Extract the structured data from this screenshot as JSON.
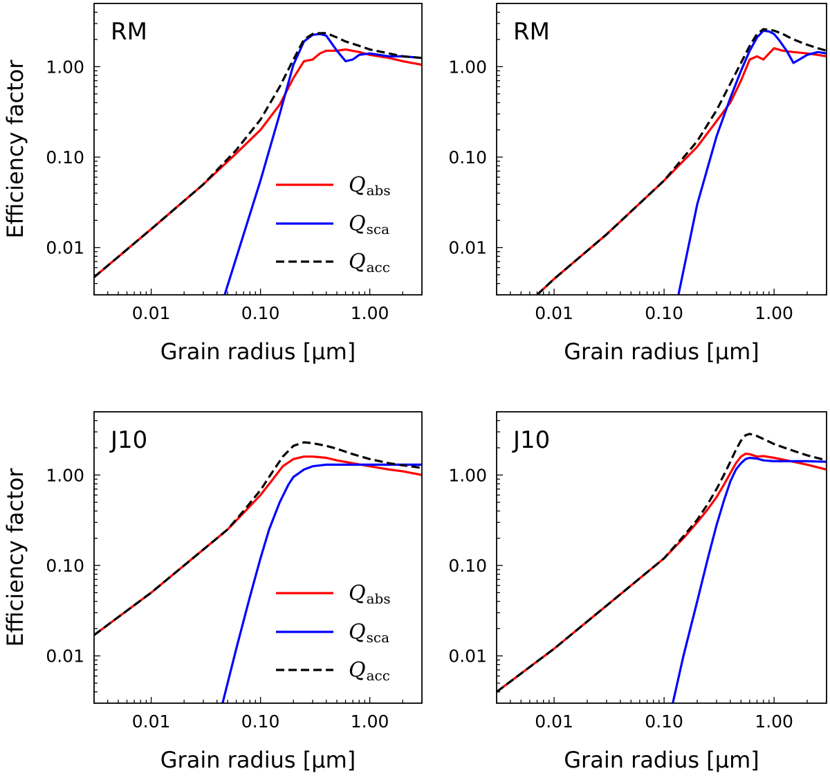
{
  "chart_data": [
    {
      "type": "line",
      "panel_label": "RM",
      "xlabel": "Grain radius [μm]",
      "ylabel": "Efficiency factor",
      "xscale": "log",
      "yscale": "log",
      "xlim": [
        0.003,
        3.0
      ],
      "ylim": [
        0.003,
        5.0
      ],
      "xticks": [
        "0.01",
        "0.10",
        "1.00"
      ],
      "yticks": [
        "0.01",
        "0.10",
        "1.00"
      ],
      "grid": false,
      "legend": {
        "placement": "center-right"
      },
      "series": [
        {
          "name": "Q",
          "sub": "abs",
          "color": "#ff0000",
          "style": "solid",
          "x": [
            0.003,
            0.01,
            0.03,
            0.06,
            0.1,
            0.15,
            0.2,
            0.25,
            0.3,
            0.35,
            0.4,
            0.5,
            0.6,
            0.8,
            1.0,
            1.5,
            2.0,
            3.0
          ],
          "y": [
            0.0047,
            0.016,
            0.05,
            0.11,
            0.2,
            0.38,
            0.75,
            1.15,
            1.2,
            1.4,
            1.5,
            1.5,
            1.55,
            1.45,
            1.35,
            1.25,
            1.15,
            1.05
          ]
        },
        {
          "name": "Q",
          "sub": "sca",
          "color": "#0000ff",
          "style": "solid",
          "x": [
            0.047,
            0.1,
            0.15,
            0.2,
            0.25,
            0.3,
            0.35,
            0.4,
            0.5,
            0.6,
            0.7,
            0.8,
            1.0,
            1.5,
            2.0,
            3.0
          ],
          "y": [
            0.003,
            0.055,
            0.3,
            1.05,
            1.9,
            2.25,
            2.3,
            2.2,
            1.5,
            1.15,
            1.2,
            1.35,
            1.4,
            1.3,
            1.3,
            1.25
          ]
        },
        {
          "name": "Q",
          "sub": "acc",
          "color": "#000000",
          "style": "dashed",
          "x": [
            0.003,
            0.01,
            0.03,
            0.06,
            0.1,
            0.15,
            0.2,
            0.25,
            0.3,
            0.35,
            0.4,
            0.5,
            0.6,
            0.8,
            1.0,
            1.5,
            2.0,
            3.0
          ],
          "y": [
            0.0047,
            0.016,
            0.05,
            0.12,
            0.26,
            0.6,
            1.2,
            2.0,
            2.3,
            2.35,
            2.35,
            2.1,
            1.9,
            1.7,
            1.55,
            1.4,
            1.3,
            1.25
          ]
        }
      ]
    },
    {
      "type": "line",
      "panel_label": "RM",
      "xlabel": "Grain radius [μm]",
      "ylabel": "",
      "xscale": "log",
      "yscale": "log",
      "xlim": [
        0.003,
        3.0
      ],
      "ylim": [
        0.003,
        5.0
      ],
      "xticks": [
        "0.01",
        "0.10",
        "1.00"
      ],
      "yticks": [
        "0.01",
        "0.10",
        "1.00"
      ],
      "grid": false,
      "legend": null,
      "series": [
        {
          "name": "Q",
          "sub": "abs",
          "color": "#ff0000",
          "style": "solid",
          "x": [
            0.007,
            0.01,
            0.03,
            0.1,
            0.2,
            0.3,
            0.4,
            0.5,
            0.6,
            0.7,
            0.8,
            0.9,
            1.0,
            1.2,
            1.5,
            2.0,
            2.5,
            3.0
          ],
          "y": [
            0.003,
            0.0045,
            0.014,
            0.055,
            0.13,
            0.25,
            0.4,
            0.7,
            1.2,
            1.3,
            1.2,
            1.4,
            1.6,
            1.5,
            1.45,
            1.4,
            1.35,
            1.3
          ]
        },
        {
          "name": "Q",
          "sub": "sca",
          "color": "#0000ff",
          "style": "solid",
          "x": [
            0.135,
            0.2,
            0.3,
            0.4,
            0.5,
            0.6,
            0.7,
            0.8,
            0.9,
            1.0,
            1.1,
            1.3,
            1.5,
            1.7,
            2.0,
            2.5,
            3.0
          ],
          "y": [
            0.003,
            0.03,
            0.17,
            0.45,
            0.9,
            1.5,
            2.1,
            2.5,
            2.45,
            2.3,
            2.0,
            1.5,
            1.1,
            1.2,
            1.35,
            1.45,
            1.4
          ]
        },
        {
          "name": "Q",
          "sub": "acc",
          "color": "#000000",
          "style": "dashed",
          "x": [
            0.007,
            0.01,
            0.03,
            0.1,
            0.2,
            0.3,
            0.4,
            0.5,
            0.6,
            0.7,
            0.8,
            1.0,
            1.2,
            1.5,
            2.0,
            2.5,
            3.0
          ],
          "y": [
            0.003,
            0.0045,
            0.014,
            0.055,
            0.15,
            0.33,
            0.65,
            1.1,
            1.7,
            2.3,
            2.6,
            2.5,
            2.3,
            2.0,
            1.75,
            1.6,
            1.5
          ]
        }
      ]
    },
    {
      "type": "line",
      "panel_label": "J10",
      "xlabel": "Grain radius [μm]",
      "ylabel": "Efficiency factor",
      "xscale": "log",
      "yscale": "log",
      "xlim": [
        0.003,
        3.0
      ],
      "ylim": [
        0.003,
        5.0
      ],
      "xticks": [
        "0.01",
        "0.10",
        "1.00"
      ],
      "yticks": [
        "0.01",
        "0.10",
        "1.00"
      ],
      "grid": false,
      "legend": {
        "placement": "center-right"
      },
      "series": [
        {
          "name": "Q",
          "sub": "abs",
          "color": "#ff0000",
          "style": "solid",
          "x": [
            0.003,
            0.01,
            0.03,
            0.05,
            0.07,
            0.1,
            0.13,
            0.16,
            0.2,
            0.25,
            0.3,
            0.4,
            0.5,
            0.7,
            1.0,
            1.5,
            2.0,
            3.0
          ],
          "y": [
            0.017,
            0.05,
            0.15,
            0.25,
            0.38,
            0.6,
            0.9,
            1.25,
            1.5,
            1.6,
            1.6,
            1.55,
            1.45,
            1.35,
            1.25,
            1.15,
            1.1,
            1.0
          ]
        },
        {
          "name": "Q",
          "sub": "sca",
          "color": "#0000ff",
          "style": "solid",
          "x": [
            0.045,
            0.06,
            0.08,
            0.1,
            0.12,
            0.15,
            0.18,
            0.2,
            0.25,
            0.3,
            0.4,
            0.5,
            0.7,
            1.0,
            1.5,
            2.0,
            3.0
          ],
          "y": [
            0.003,
            0.012,
            0.045,
            0.12,
            0.25,
            0.5,
            0.78,
            0.95,
            1.15,
            1.25,
            1.3,
            1.3,
            1.3,
            1.3,
            1.3,
            1.3,
            1.3
          ]
        },
        {
          "name": "Q",
          "sub": "acc",
          "color": "#000000",
          "style": "dashed",
          "x": [
            0.003,
            0.01,
            0.03,
            0.05,
            0.07,
            0.1,
            0.13,
            0.16,
            0.2,
            0.25,
            0.3,
            0.4,
            0.5,
            0.7,
            1.0,
            1.5,
            2.0,
            3.0
          ],
          "y": [
            0.017,
            0.05,
            0.15,
            0.25,
            0.4,
            0.68,
            1.1,
            1.6,
            2.1,
            2.3,
            2.25,
            2.1,
            1.95,
            1.7,
            1.5,
            1.35,
            1.28,
            1.2
          ]
        }
      ]
    },
    {
      "type": "line",
      "panel_label": "J10",
      "xlabel": "Grain radius [μm]",
      "ylabel": "",
      "xscale": "log",
      "yscale": "log",
      "xlim": [
        0.003,
        3.0
      ],
      "ylim": [
        0.003,
        5.0
      ],
      "xticks": [
        "0.01",
        "0.10",
        "1.00"
      ],
      "yticks": [
        "0.01",
        "0.10",
        "1.00"
      ],
      "grid": false,
      "legend": null,
      "series": [
        {
          "name": "Q",
          "sub": "abs",
          "color": "#ff0000",
          "style": "solid",
          "x": [
            0.003,
            0.01,
            0.03,
            0.1,
            0.15,
            0.2,
            0.25,
            0.3,
            0.35,
            0.4,
            0.45,
            0.5,
            0.55,
            0.6,
            0.7,
            0.8,
            1.0,
            1.5,
            2.0,
            3.0
          ],
          "y": [
            0.004,
            0.012,
            0.036,
            0.12,
            0.2,
            0.3,
            0.42,
            0.57,
            0.78,
            1.05,
            1.35,
            1.6,
            1.72,
            1.7,
            1.6,
            1.62,
            1.55,
            1.4,
            1.3,
            1.15
          ]
        },
        {
          "name": "Q",
          "sub": "sca",
          "color": "#0000ff",
          "style": "solid",
          "x": [
            0.12,
            0.15,
            0.2,
            0.25,
            0.3,
            0.35,
            0.4,
            0.45,
            0.5,
            0.55,
            0.6,
            0.7,
            0.8,
            1.0,
            1.5,
            2.0,
            3.0
          ],
          "y": [
            0.003,
            0.01,
            0.04,
            0.12,
            0.28,
            0.52,
            0.85,
            1.15,
            1.35,
            1.5,
            1.55,
            1.52,
            1.45,
            1.42,
            1.42,
            1.42,
            1.4
          ]
        },
        {
          "name": "Q",
          "sub": "acc",
          "color": "#000000",
          "style": "dashed",
          "x": [
            0.003,
            0.01,
            0.03,
            0.1,
            0.15,
            0.2,
            0.25,
            0.3,
            0.35,
            0.4,
            0.45,
            0.5,
            0.55,
            0.6,
            0.7,
            0.8,
            1.0,
            1.5,
            2.0,
            3.0
          ],
          "y": [
            0.004,
            0.012,
            0.036,
            0.12,
            0.21,
            0.32,
            0.48,
            0.7,
            1.0,
            1.4,
            1.9,
            2.4,
            2.75,
            2.85,
            2.7,
            2.5,
            2.2,
            1.85,
            1.65,
            1.45
          ]
        }
      ]
    }
  ]
}
